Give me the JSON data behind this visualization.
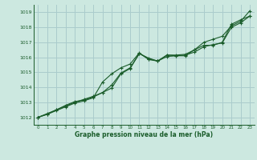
{
  "xlabel": "Graphe pression niveau de la mer (hPa)",
  "background_color": "#cce8e0",
  "grid_color": "#aacccc",
  "line_color": "#1a5c2a",
  "xlim": [
    -0.5,
    23.5
  ],
  "ylim": [
    1011.5,
    1019.5
  ],
  "yticks": [
    1012,
    1013,
    1014,
    1015,
    1016,
    1017,
    1018,
    1019
  ],
  "xticks": [
    0,
    1,
    2,
    3,
    4,
    5,
    6,
    7,
    8,
    9,
    10,
    11,
    12,
    13,
    14,
    15,
    16,
    17,
    18,
    19,
    20,
    21,
    22,
    23
  ],
  "line1_x": [
    0,
    1,
    2,
    3,
    4,
    5,
    6,
    7,
    8,
    9,
    10,
    11,
    12,
    13,
    14,
    15,
    16,
    17,
    18,
    19,
    20,
    21,
    22,
    23
  ],
  "line1_y": [
    1012.0,
    1012.2,
    1012.5,
    1012.8,
    1013.05,
    1013.15,
    1013.35,
    1013.65,
    1013.95,
    1014.9,
    1015.25,
    1016.25,
    1015.9,
    1015.75,
    1016.05,
    1016.1,
    1016.15,
    1016.35,
    1016.7,
    1016.85,
    1016.95,
    1018.0,
    1018.3,
    1018.75
  ],
  "line2_x": [
    0,
    1,
    2,
    3,
    4,
    5,
    6,
    7,
    8,
    9,
    10,
    11,
    12,
    13,
    14,
    15,
    16,
    17,
    18,
    19,
    20,
    21,
    22,
    23
  ],
  "line2_y": [
    1012.0,
    1012.2,
    1012.45,
    1012.7,
    1012.95,
    1013.1,
    1013.3,
    1014.35,
    1014.9,
    1015.3,
    1015.55,
    1016.3,
    1015.85,
    1015.75,
    1016.15,
    1016.1,
    1016.1,
    1016.5,
    1016.8,
    1016.8,
    1017.0,
    1018.2,
    1018.5,
    1018.75
  ],
  "line3_x": [
    0,
    1,
    2,
    3,
    4,
    5,
    6,
    7,
    8,
    9,
    10,
    11,
    12,
    13,
    14,
    15,
    16,
    17,
    18,
    19,
    20,
    21,
    22,
    23
  ],
  "line3_y": [
    1012.0,
    1012.25,
    1012.5,
    1012.75,
    1013.0,
    1013.2,
    1013.4,
    1013.65,
    1014.15,
    1014.95,
    1015.3,
    1016.25,
    1015.95,
    1015.75,
    1016.15,
    1016.15,
    1016.2,
    1016.5,
    1017.0,
    1017.2,
    1017.4,
    1018.1,
    1018.4,
    1019.1
  ]
}
